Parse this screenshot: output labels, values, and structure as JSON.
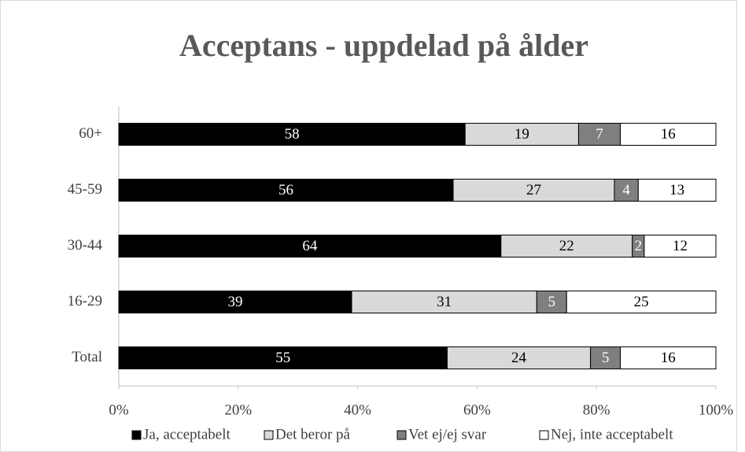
{
  "chart_data": {
    "type": "stacked_barh",
    "title": "Acceptans - uppdelad på ålder",
    "categories": [
      "60+",
      "45-59",
      "30-44",
      "16-29",
      "Total"
    ],
    "series": [
      {
        "name": "Ja, acceptabelt",
        "color": "#000000",
        "label_color": "#ffffff",
        "values": [
          58,
          56,
          64,
          39,
          55
        ]
      },
      {
        "name": "Det beror på",
        "color": "#d9d9d9",
        "label_color": "#000000",
        "values": [
          19,
          27,
          22,
          31,
          24
        ]
      },
      {
        "name": "Vet ej/ej svar",
        "color": "#7f7f7f",
        "label_color": "#ffffff",
        "values": [
          7,
          4,
          2,
          5,
          5
        ]
      },
      {
        "name": "Nej, inte acceptabelt",
        "color": "#ffffff",
        "label_color": "#000000",
        "values": [
          16,
          13,
          12,
          25,
          16
        ]
      }
    ],
    "xlim": [
      0,
      100
    ],
    "xticks": [
      {
        "value": 0,
        "label": "0%"
      },
      {
        "value": 20,
        "label": "20%"
      },
      {
        "value": 40,
        "label": "40%"
      },
      {
        "value": 60,
        "label": "60%"
      },
      {
        "value": 80,
        "label": "80%"
      },
      {
        "value": 100,
        "label": "100%"
      }
    ],
    "grid": false,
    "legend": "bottom"
  }
}
